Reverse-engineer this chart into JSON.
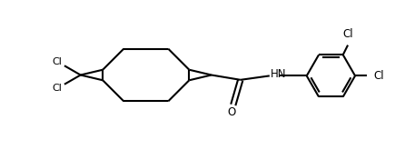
{
  "background_color": "#ffffff",
  "line_color": "#000000",
  "line_width": 1.5,
  "fig_width": 4.46,
  "fig_height": 1.65,
  "dpi": 100,
  "xlim": [
    -1.0,
    9.0
  ],
  "ylim": [
    -1.8,
    1.8
  ]
}
